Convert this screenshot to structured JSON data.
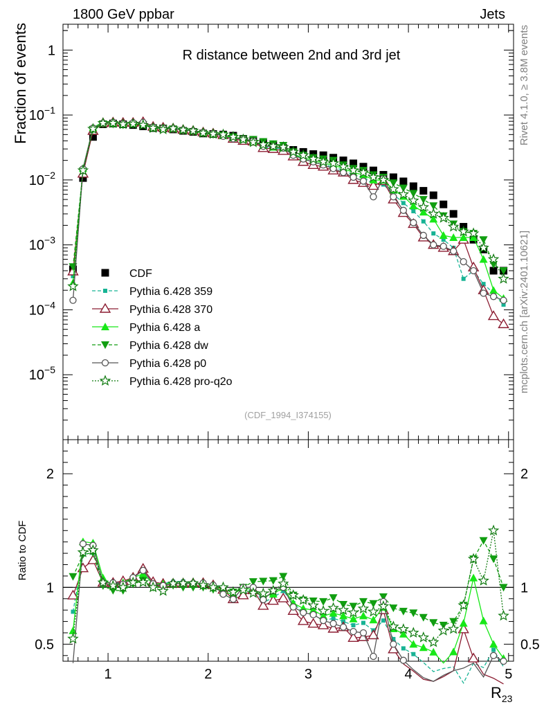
{
  "header": {
    "left": "1800 GeV ppbar",
    "right": "Jets"
  },
  "side": {
    "rivet": "Rivet 4.1.0, ≥ 3.8M events",
    "mcplots": "mcplots.cern.ch [arXiv:2401.10621]"
  },
  "chart_data": {
    "type": "line",
    "title": "R distance between 2nd and 3rd jet",
    "xlabel": "R",
    "xlabel_sub": "23",
    "ylabel": "Fraction of events",
    "ratio_ylabel": "Ratio to CDF",
    "analysis_tag": "(CDF_1994_I374155)",
    "xlim": [
      0.55,
      5.05
    ],
    "ylim": [
      1e-06,
      2.5
    ],
    "ratio_ylim": [
      0.35,
      2.3
    ],
    "x_ticks": [
      "1",
      "2",
      "3",
      "4",
      "5"
    ],
    "y_ticks": [
      {
        "base": "1",
        "exp": ""
      },
      {
        "base": "10",
        "exp": "−1"
      },
      {
        "base": "10",
        "exp": "−2"
      },
      {
        "base": "10",
        "exp": "−3"
      },
      {
        "base": "10",
        "exp": "−4"
      },
      {
        "base": "10",
        "exp": "−5"
      }
    ],
    "ratio_y_ticks": [
      "0.5",
      "1",
      "2"
    ],
    "x": [
      0.65,
      0.75,
      0.85,
      0.95,
      1.05,
      1.15,
      1.25,
      1.35,
      1.45,
      1.55,
      1.65,
      1.75,
      1.85,
      1.95,
      2.05,
      2.15,
      2.25,
      2.35,
      2.45,
      2.55,
      2.65,
      2.75,
      2.85,
      2.95,
      3.05,
      3.15,
      3.25,
      3.35,
      3.45,
      3.55,
      3.65,
      3.75,
      3.85,
      3.95,
      4.05,
      4.15,
      4.25,
      4.35,
      4.45,
      4.55,
      4.65,
      4.75,
      4.85,
      4.95
    ],
    "series": [
      {
        "name": "CDF",
        "color": "#000000",
        "marker": "square",
        "dash": "none",
        "values": [
          0.00042,
          0.0107,
          0.046,
          0.072,
          0.074,
          0.072,
          0.07,
          0.067,
          0.063,
          0.062,
          0.06,
          0.057,
          0.055,
          0.052,
          0.051,
          0.05,
          0.048,
          0.043,
          0.04,
          0.037,
          0.034,
          0.031,
          0.029,
          0.027,
          0.025,
          0.024,
          0.022,
          0.02,
          0.018,
          0.016,
          0.014,
          0.012,
          0.011,
          0.0095,
          0.008,
          0.0068,
          0.0058,
          0.0042,
          0.003,
          0.0019,
          0.0012,
          0.00085,
          0.0004,
          0.0004
        ]
      },
      {
        "name": "Pythia 6.428 359",
        "color": "#17b394",
        "marker": "square-small",
        "dash": "5,3",
        "values": [
          0.00033,
          0.0138,
          0.06,
          0.076,
          0.077,
          0.075,
          0.076,
          0.077,
          0.065,
          0.064,
          0.063,
          0.06,
          0.057,
          0.054,
          0.052,
          0.05,
          0.044,
          0.04,
          0.04,
          0.032,
          0.031,
          0.03,
          0.025,
          0.021,
          0.019,
          0.017,
          0.016,
          0.014,
          0.012,
          0.011,
          0.0087,
          0.0085,
          0.006,
          0.0044,
          0.0033,
          0.0023,
          0.0015,
          0.0012,
          0.0009,
          0.0003,
          0.0004,
          0.00025,
          0.00018,
          0.00012
        ]
      },
      {
        "name": "Pythia 6.428 370",
        "color": "#8b1c31",
        "marker": "triangle-open",
        "dash": "none",
        "values": [
          0.00039,
          0.0125,
          0.057,
          0.075,
          0.077,
          0.076,
          0.076,
          0.078,
          0.066,
          0.064,
          0.062,
          0.059,
          0.057,
          0.054,
          0.052,
          0.049,
          0.043,
          0.04,
          0.039,
          0.031,
          0.03,
          0.028,
          0.023,
          0.019,
          0.017,
          0.016,
          0.014,
          0.013,
          0.01,
          0.009,
          0.0081,
          0.0096,
          0.005,
          0.0031,
          0.0021,
          0.0013,
          0.001,
          0.0009,
          0.0008,
          0.0012,
          0.00045,
          0.0002,
          8e-05,
          6e-05
        ]
      },
      {
        "name": "Pythia 6.428 a",
        "color": "#17e817",
        "marker": "triangle",
        "dash": "none",
        "values": [
          0.00026,
          0.015,
          0.064,
          0.078,
          0.075,
          0.075,
          0.076,
          0.075,
          0.065,
          0.064,
          0.062,
          0.059,
          0.057,
          0.054,
          0.052,
          0.048,
          0.045,
          0.043,
          0.039,
          0.034,
          0.032,
          0.031,
          0.025,
          0.022,
          0.02,
          0.018,
          0.017,
          0.015,
          0.013,
          0.012,
          0.01,
          0.0099,
          0.007,
          0.0056,
          0.004,
          0.0032,
          0.0025,
          0.0014,
          0.0013,
          0.0013,
          0.0013,
          0.0006,
          0.0002,
          0.00015
        ]
      },
      {
        "name": "Pythia 6.428 dw",
        "color": "#119e11",
        "marker": "triangle-down",
        "dash": "5,3",
        "values": [
          0.00046,
          0.0138,
          0.06,
          0.073,
          0.072,
          0.07,
          0.072,
          0.071,
          0.063,
          0.062,
          0.061,
          0.057,
          0.055,
          0.052,
          0.05,
          0.049,
          0.046,
          0.043,
          0.042,
          0.039,
          0.036,
          0.034,
          0.027,
          0.024,
          0.022,
          0.021,
          0.02,
          0.017,
          0.015,
          0.014,
          0.012,
          0.011,
          0.009,
          0.0075,
          0.0062,
          0.005,
          0.004,
          0.0028,
          0.0021,
          0.0016,
          0.0015,
          0.0012,
          0.0005,
          0.0004
        ]
      },
      {
        "name": "Pythia 6.428 p0",
        "color": "#555555",
        "marker": "circle-open",
        "dash": "none",
        "values": [
          0.00014,
          0.0148,
          0.063,
          0.075,
          0.077,
          0.074,
          0.076,
          0.077,
          0.065,
          0.063,
          0.062,
          0.059,
          0.057,
          0.054,
          0.052,
          0.047,
          0.043,
          0.043,
          0.04,
          0.033,
          0.033,
          0.031,
          0.024,
          0.021,
          0.019,
          0.017,
          0.015,
          0.013,
          0.011,
          0.0096,
          0.0055,
          0.0105,
          0.0055,
          0.0034,
          0.0022,
          0.0014,
          0.001,
          0.00095,
          0.0008,
          0.00055,
          0.0004,
          0.00018,
          0.00016,
          0.00014
        ]
      },
      {
        "name": "Pythia 6.428 pro-q2o",
        "color": "#0f7a0f",
        "marker": "star-open",
        "dash": "2,2",
        "values": [
          0.00023,
          0.014,
          0.061,
          0.075,
          0.075,
          0.072,
          0.073,
          0.07,
          0.063,
          0.06,
          0.062,
          0.059,
          0.057,
          0.053,
          0.051,
          0.05,
          0.046,
          0.042,
          0.038,
          0.035,
          0.033,
          0.032,
          0.027,
          0.024,
          0.021,
          0.019,
          0.018,
          0.016,
          0.014,
          0.013,
          0.011,
          0.01,
          0.0072,
          0.006,
          0.0048,
          0.0038,
          0.003,
          0.0026,
          0.0019,
          0.0016,
          0.0015,
          0.0009,
          0.0006,
          0.0003
        ]
      }
    ]
  }
}
